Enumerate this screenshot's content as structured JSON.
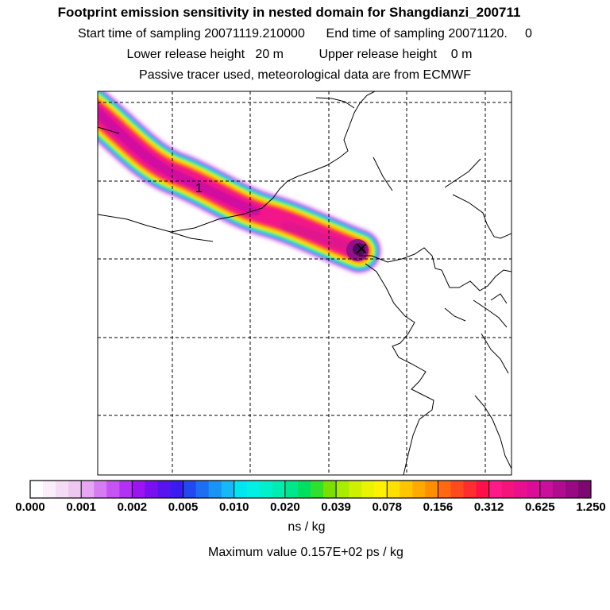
{
  "titles": {
    "main": "Footprint emission sensitivity in nested domain for Shangdianzi_200711",
    "sampling": "Start time of sampling 20071119.210000      End time of sampling 20071120.     0",
    "release": "Lower release height   20 m          Upper release height    0 m",
    "tracer": "Passive tracer used, meteorological data are from ECMWF"
  },
  "map": {
    "contour_label": "1",
    "receptor_symbol": "×"
  },
  "legend": {
    "ticks": [
      "0.000",
      "0.001",
      "0.002",
      "0.005",
      "0.010",
      "0.020",
      "0.039",
      "0.078",
      "0.156",
      "0.312",
      "0.625",
      "1.250"
    ],
    "colors": [
      [
        "#ffffff",
        "#fbeefb",
        "#f5dcf5",
        "#efc8f2"
      ],
      [
        "#e6a6f3",
        "#d67cf2",
        "#c654f3",
        "#b331f3"
      ],
      [
        "#9b14f2",
        "#7a10f0",
        "#5814ee",
        "#3a1cf0"
      ],
      [
        "#2248f0",
        "#1e6ef2",
        "#1a94f4",
        "#16b8f6"
      ],
      [
        "#00e6f0",
        "#00f0e6",
        "#00f0cc",
        "#00ecb0"
      ],
      [
        "#00e68c",
        "#00e060",
        "#30e030",
        "#7ae000"
      ],
      [
        "#a8ec00",
        "#ccf000",
        "#e8f400",
        "#fff200"
      ],
      [
        "#ffe000",
        "#ffc600",
        "#ffaa00",
        "#ff8e00"
      ],
      [
        "#ff6a10",
        "#ff4a20",
        "#ff2c30",
        "#ff1048"
      ],
      [
        "#ff1a8a",
        "#f4147c",
        "#e8108c",
        "#da0c98"
      ],
      [
        "#c8109c",
        "#b00c90",
        "#980a84",
        "#7e0872"
      ]
    ],
    "units": "ns / kg",
    "max_value_text": "Maximum value  0.157E+02 ps / kg"
  }
}
